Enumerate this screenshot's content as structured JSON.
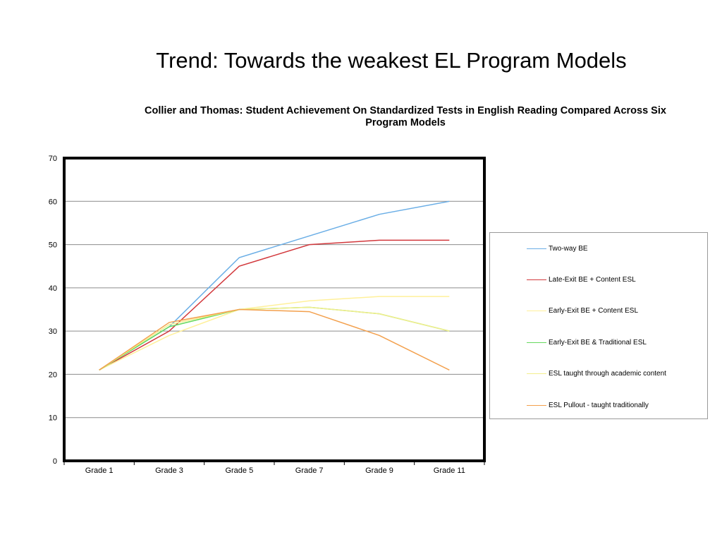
{
  "slide": {
    "title": "Trend: Towards the weakest EL Program Models"
  },
  "chart_data": {
    "type": "line",
    "title": "Collier and Thomas: Student Achievement On Standardized Tests in English Reading Compared Across Six Program Models",
    "xlabel": "",
    "ylabel": "",
    "categories": [
      "Grade 1",
      "Grade 3",
      "Grade 5",
      "Grade 7",
      "Grade 9",
      "Grade 11"
    ],
    "ylim": [
      0,
      70
    ],
    "yticks": [
      0,
      10,
      20,
      30,
      40,
      50,
      60,
      70
    ],
    "grid": true,
    "legend_position": "right",
    "series": [
      {
        "name": "Two-way BE",
        "color": "#6aaee6",
        "values": [
          21,
          31,
          47,
          52,
          57,
          60
        ]
      },
      {
        "name": "Late-Exit BE + Content ESL",
        "color": "#d2383c",
        "values": [
          21,
          30,
          45,
          50,
          51,
          51
        ]
      },
      {
        "name": "Early-Exit BE + Content ESL",
        "color": "#fff09a",
        "values": [
          21,
          29,
          35,
          37,
          38,
          38
        ]
      },
      {
        "name": "Early-Exit BE & Traditional ESL",
        "color": "#66d95e",
        "values": [
          21,
          31,
          35,
          35.5,
          34,
          30
        ]
      },
      {
        "name": "ESL taught through academic content",
        "color": "#f3ee8c",
        "values": [
          21,
          31.5,
          35,
          35.5,
          34,
          30
        ]
      },
      {
        "name": "ESL Pullout - taught traditionally",
        "color": "#f3a04d",
        "values": [
          21,
          32,
          35,
          34.5,
          29,
          21
        ]
      }
    ]
  }
}
